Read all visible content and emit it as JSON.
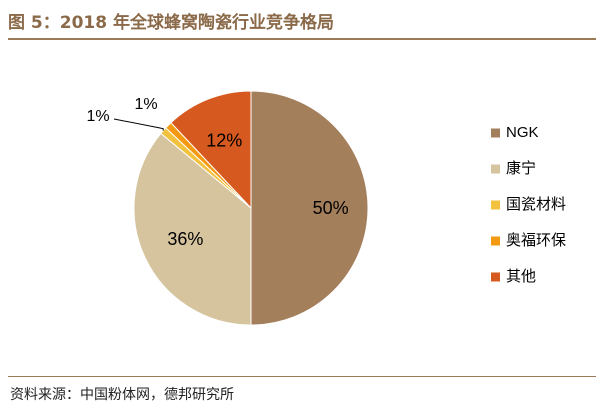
{
  "figure": {
    "title": "图 5：2018 年全球蜂窝陶瓷行业竞争格局",
    "source": "资料来源：中国粉体网，德邦研究所"
  },
  "chart_data": {
    "type": "pie",
    "categories": [
      "NGK",
      "康宁",
      "国瓷材料",
      "奥福环保",
      "其他"
    ],
    "values": [
      50,
      36,
      1,
      1,
      12
    ],
    "labels": [
      "50%",
      "36%",
      "1%",
      "1%",
      "12%"
    ],
    "colors": [
      "#a47f5c",
      "#d6c49f",
      "#f2c13d",
      "#f39a12",
      "#d65a1f"
    ],
    "legend_position": "right",
    "start_angle_deg": 0,
    "direction": "clockwise"
  }
}
